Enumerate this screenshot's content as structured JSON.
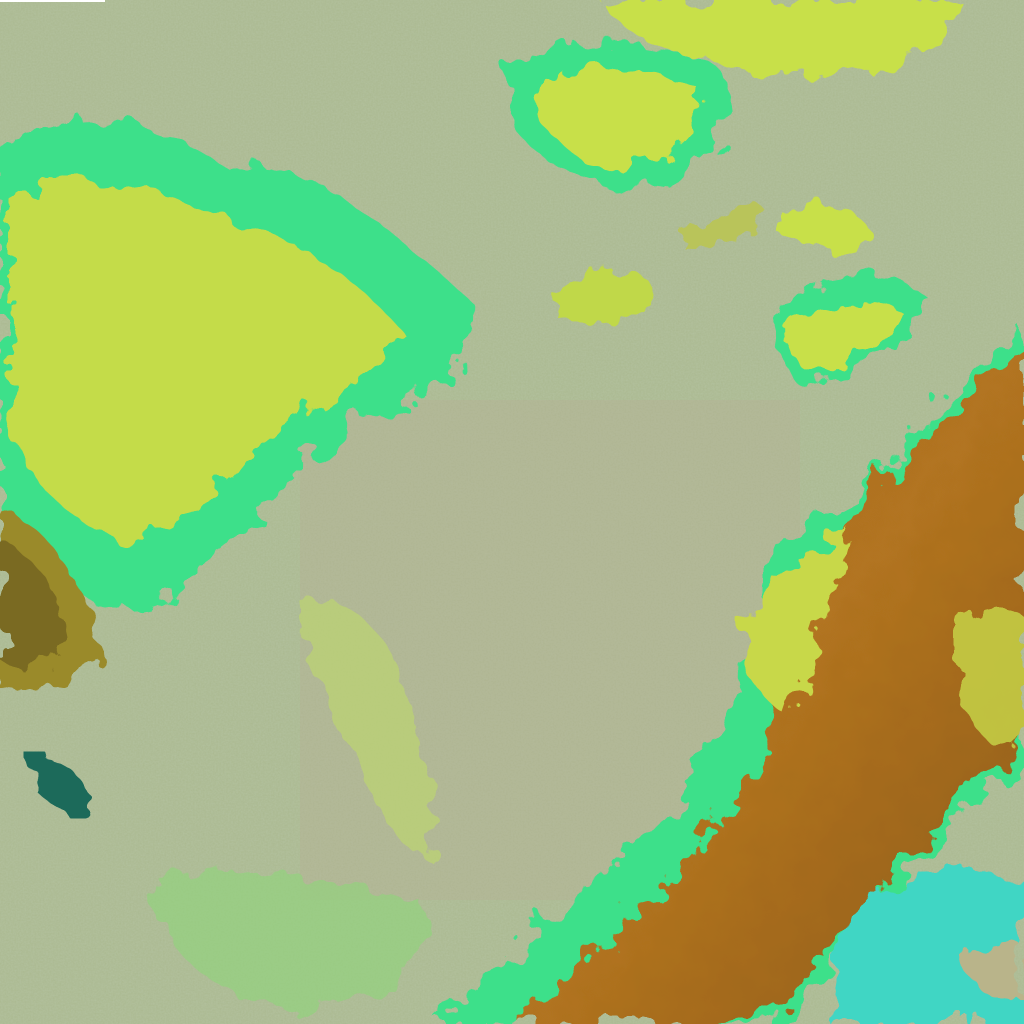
{
  "image": {
    "kind": "false-color satellite image",
    "colors": {
      "ground": "#aab88f",
      "cloud_yellow": "#c8e04a",
      "cloud_edge_green": "#3ee08a",
      "ridge_brown": "#a86a1c",
      "water_cyan": "#3fd6c4",
      "shadow": "#1f6a5a"
    }
  }
}
